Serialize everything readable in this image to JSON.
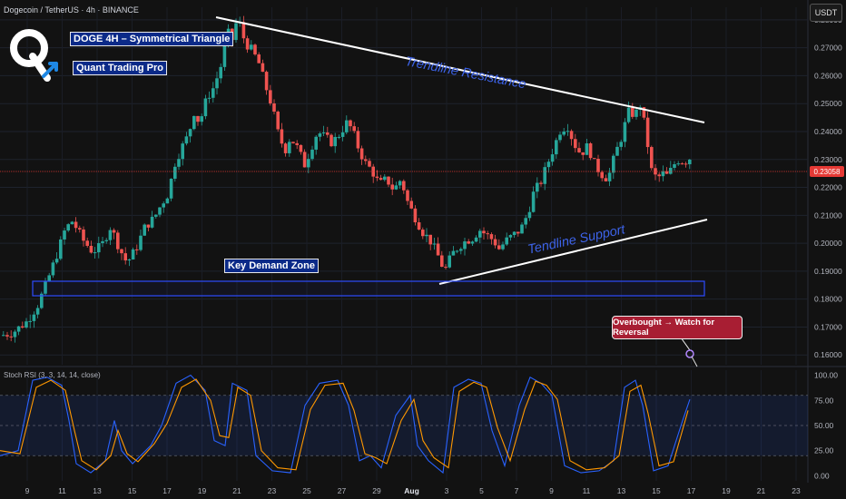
{
  "header": {
    "symbol_line": "Dogecoin / TetherUS · 4h · BINANCE",
    "currency_button": "USDT"
  },
  "logo": {
    "letter": "Q"
  },
  "annotations": {
    "title_box": "DOGE 4H – Symmetrical Triangle",
    "brand_box": "Quant Trading Pro",
    "resistance_label": "Trendline Resistance",
    "support_label": "Tendline Support",
    "demand_label": "Key Demand Zone",
    "callout": "Overbought → Watch for Reversal"
  },
  "indicator": {
    "label": "Stoch RSI (3, 3, 14, 14, close)"
  },
  "colors": {
    "up": "#26a69a",
    "down": "#ef5350",
    "rsi_k": "#2962ff",
    "rsi_d": "#ff9800",
    "zone": "#2c4bff",
    "callout_bg": "#a81e33",
    "price_line": "#e53935"
  },
  "chart_data": {
    "type": "candlestick",
    "y_axis": {
      "ticks": [
        "0.28000",
        "0.27000",
        "0.26000",
        "0.25000",
        "0.24000",
        "0.23000",
        "0.22000",
        "0.21000",
        "0.20000",
        "0.19000",
        "0.18000",
        "0.17000",
        "0.16000"
      ],
      "range": [
        0.1565,
        0.2845
      ]
    },
    "current_price": "0.23058",
    "x_axis": {
      "ticks": [
        "9",
        "11",
        "13",
        "15",
        "17",
        "19",
        "21",
        "23",
        "25",
        "27",
        "29",
        "Aug",
        "3",
        "5",
        "7",
        "9",
        "11",
        "13",
        "15",
        "17",
        "19",
        "21",
        "23"
      ]
    },
    "price_path": [
      [
        0,
        0.167
      ],
      [
        12,
        0.168
      ],
      [
        28,
        0.172
      ],
      [
        40,
        0.178
      ],
      [
        52,
        0.188
      ],
      [
        62,
        0.197
      ],
      [
        70,
        0.205
      ],
      [
        78,
        0.208
      ],
      [
        90,
        0.201
      ],
      [
        100,
        0.197
      ],
      [
        110,
        0.199
      ],
      [
        120,
        0.206
      ],
      [
        130,
        0.198
      ],
      [
        138,
        0.193
      ],
      [
        148,
        0.198
      ],
      [
        158,
        0.206
      ],
      [
        168,
        0.209
      ],
      [
        176,
        0.214
      ],
      [
        184,
        0.218
      ],
      [
        190,
        0.228
      ],
      [
        198,
        0.234
      ],
      [
        206,
        0.239
      ],
      [
        212,
        0.247
      ],
      [
        218,
        0.243
      ],
      [
        226,
        0.252
      ],
      [
        234,
        0.256
      ],
      [
        242,
        0.264
      ],
      [
        248,
        0.276
      ],
      [
        254,
        0.273
      ],
      [
        260,
        0.281
      ],
      [
        268,
        0.272
      ],
      [
        276,
        0.269
      ],
      [
        284,
        0.264
      ],
      [
        290,
        0.257
      ],
      [
        298,
        0.249
      ],
      [
        304,
        0.24
      ],
      [
        312,
        0.233
      ],
      [
        318,
        0.238
      ],
      [
        326,
        0.234
      ],
      [
        334,
        0.228
      ],
      [
        342,
        0.235
      ],
      [
        348,
        0.24
      ],
      [
        356,
        0.238
      ],
      [
        364,
        0.236
      ],
      [
        372,
        0.239
      ],
      [
        380,
        0.243
      ],
      [
        386,
        0.241
      ],
      [
        392,
        0.235
      ],
      [
        400,
        0.229
      ],
      [
        408,
        0.226
      ],
      [
        416,
        0.221
      ],
      [
        424,
        0.223
      ],
      [
        432,
        0.219
      ],
      [
        440,
        0.223
      ],
      [
        448,
        0.214
      ],
      [
        456,
        0.209
      ],
      [
        464,
        0.204
      ],
      [
        472,
        0.201
      ],
      [
        480,
        0.196
      ],
      [
        488,
        0.19
      ],
      [
        496,
        0.196
      ],
      [
        504,
        0.199
      ],
      [
        512,
        0.201
      ],
      [
        520,
        0.202
      ],
      [
        526,
        0.205
      ],
      [
        534,
        0.203
      ],
      [
        542,
        0.201
      ],
      [
        548,
        0.198
      ],
      [
        556,
        0.201
      ],
      [
        564,
        0.203
      ],
      [
        572,
        0.205
      ],
      [
        580,
        0.211
      ],
      [
        586,
        0.218
      ],
      [
        594,
        0.222
      ],
      [
        602,
        0.229
      ],
      [
        608,
        0.234
      ],
      [
        616,
        0.241
      ],
      [
        624,
        0.242
      ],
      [
        630,
        0.236
      ],
      [
        638,
        0.232
      ],
      [
        646,
        0.235
      ],
      [
        652,
        0.229
      ],
      [
        660,
        0.225
      ],
      [
        668,
        0.223
      ],
      [
        676,
        0.232
      ],
      [
        684,
        0.239
      ],
      [
        690,
        0.247
      ],
      [
        698,
        0.246
      ],
      [
        704,
        0.25
      ],
      [
        710,
        0.239
      ],
      [
        716,
        0.226
      ],
      [
        722,
        0.223
      ],
      [
        728,
        0.225
      ],
      [
        734,
        0.224
      ],
      [
        740,
        0.228
      ],
      [
        746,
        0.23
      ],
      [
        752,
        0.229
      ],
      [
        760,
        0.231
      ]
    ],
    "stoch_rsi": {
      "range": [
        -5,
        105
      ],
      "ticks": [
        "100.00",
        "75.00",
        "50.00",
        "25.00",
        "0.00"
      ],
      "k_path": [
        [
          0,
          20
        ],
        [
          20,
          25
        ],
        [
          36,
          95
        ],
        [
          52,
          98
        ],
        [
          68,
          90
        ],
        [
          76,
          55
        ],
        [
          84,
          12
        ],
        [
          100,
          3
        ],
        [
          116,
          15
        ],
        [
          126,
          55
        ],
        [
          134,
          25
        ],
        [
          146,
          12
        ],
        [
          166,
          30
        ],
        [
          178,
          50
        ],
        [
          194,
          92
        ],
        [
          210,
          100
        ],
        [
          226,
          85
        ],
        [
          236,
          35
        ],
        [
          248,
          30
        ],
        [
          256,
          92
        ],
        [
          272,
          85
        ],
        [
          282,
          20
        ],
        [
          300,
          5
        ],
        [
          320,
          3
        ],
        [
          336,
          70
        ],
        [
          352,
          92
        ],
        [
          372,
          95
        ],
        [
          384,
          70
        ],
        [
          396,
          15
        ],
        [
          408,
          20
        ],
        [
          420,
          8
        ],
        [
          436,
          60
        ],
        [
          452,
          80
        ],
        [
          460,
          30
        ],
        [
          472,
          15
        ],
        [
          488,
          3
        ],
        [
          500,
          88
        ],
        [
          516,
          96
        ],
        [
          530,
          92
        ],
        [
          542,
          45
        ],
        [
          556,
          10
        ],
        [
          572,
          70
        ],
        [
          584,
          98
        ],
        [
          596,
          92
        ],
        [
          608,
          80
        ],
        [
          622,
          10
        ],
        [
          640,
          3
        ],
        [
          660,
          5
        ],
        [
          676,
          15
        ],
        [
          688,
          88
        ],
        [
          700,
          95
        ],
        [
          708,
          70
        ],
        [
          720,
          5
        ],
        [
          736,
          10
        ],
        [
          752,
          55
        ],
        [
          760,
          76
        ]
      ],
      "d_path": [
        [
          0,
          25
        ],
        [
          22,
          22
        ],
        [
          40,
          88
        ],
        [
          56,
          95
        ],
        [
          72,
          85
        ],
        [
          82,
          45
        ],
        [
          90,
          15
        ],
        [
          106,
          6
        ],
        [
          122,
          20
        ],
        [
          130,
          45
        ],
        [
          140,
          22
        ],
        [
          152,
          14
        ],
        [
          170,
          32
        ],
        [
          184,
          52
        ],
        [
          200,
          88
        ],
        [
          216,
          96
        ],
        [
          232,
          75
        ],
        [
          242,
          40
        ],
        [
          252,
          38
        ],
        [
          262,
          88
        ],
        [
          276,
          80
        ],
        [
          288,
          25
        ],
        [
          306,
          8
        ],
        [
          326,
          6
        ],
        [
          342,
          66
        ],
        [
          358,
          90
        ],
        [
          378,
          92
        ],
        [
          390,
          65
        ],
        [
          402,
          22
        ],
        [
          414,
          18
        ],
        [
          426,
          12
        ],
        [
          442,
          55
        ],
        [
          456,
          76
        ],
        [
          466,
          35
        ],
        [
          478,
          18
        ],
        [
          494,
          8
        ],
        [
          506,
          84
        ],
        [
          522,
          93
        ],
        [
          536,
          88
        ],
        [
          548,
          48
        ],
        [
          562,
          15
        ],
        [
          578,
          66
        ],
        [
          590,
          94
        ],
        [
          602,
          90
        ],
        [
          614,
          76
        ],
        [
          628,
          15
        ],
        [
          646,
          6
        ],
        [
          666,
          8
        ],
        [
          682,
          20
        ],
        [
          694,
          84
        ],
        [
          706,
          90
        ],
        [
          714,
          62
        ],
        [
          726,
          10
        ],
        [
          742,
          14
        ],
        [
          758,
          65
        ]
      ]
    }
  }
}
